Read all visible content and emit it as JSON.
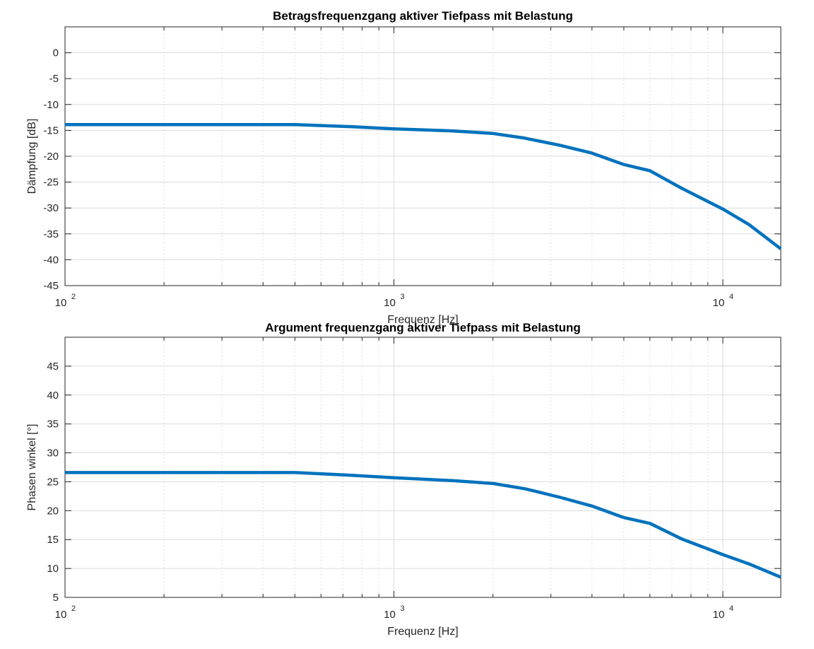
{
  "chart_data": [
    {
      "type": "line",
      "title": "Betragsfrequenzgang aktiver Tiefpass mit Belastung",
      "xlabel": "Frequenz [Hz]",
      "ylabel": "Dämpfung [dB]",
      "xscale": "log",
      "xlim": [
        100,
        15000
      ],
      "ylim": [
        -45,
        5
      ],
      "yticks": [
        0,
        -5,
        -10,
        -15,
        -20,
        -25,
        -30,
        -35,
        -40,
        -45
      ],
      "xtick_labels": [
        {
          "base": "10",
          "exp": "2",
          "value": 100
        },
        {
          "base": "10",
          "exp": "3",
          "value": 1000
        },
        {
          "base": "10",
          "exp": "4",
          "value": 10000
        }
      ],
      "grid": true,
      "color": "#0072BD",
      "series": [
        {
          "x": [
            100,
            500,
            750,
            1000,
            1500,
            2000,
            2500,
            3200,
            4000,
            5000,
            6000,
            7500,
            10000,
            12000,
            15000
          ],
          "values": [
            -13.9,
            -13.9,
            -14.3,
            -14.7,
            -15.1,
            -15.6,
            -16.5,
            -17.9,
            -19.4,
            -21.6,
            -22.8,
            -26.2,
            -30.2,
            -33.2,
            -37.9
          ]
        }
      ]
    },
    {
      "type": "line",
      "title": "Argument frequenzgang aktiver Tiefpass mit Belastung",
      "xlabel": "Frequenz [Hz]",
      "ylabel": "Phasen winkel [°]",
      "xscale": "log",
      "xlim": [
        100,
        15000
      ],
      "ylim": [
        5,
        50
      ],
      "yticks": [
        5,
        10,
        15,
        20,
        25,
        30,
        35,
        40,
        45
      ],
      "xtick_labels": [
        {
          "base": "10",
          "exp": "2",
          "value": 100
        },
        {
          "base": "10",
          "exp": "3",
          "value": 1000
        },
        {
          "base": "10",
          "exp": "4",
          "value": 10000
        }
      ],
      "grid": true,
      "color": "#0072BD",
      "series": [
        {
          "x": [
            100,
            500,
            750,
            1000,
            1500,
            2000,
            2500,
            3200,
            4000,
            5000,
            6000,
            7500,
            10000,
            12000,
            15000
          ],
          "values": [
            26.6,
            26.6,
            26.1,
            25.7,
            25.2,
            24.7,
            23.8,
            22.3,
            20.8,
            18.8,
            17.8,
            15.1,
            12.4,
            10.8,
            8.5
          ]
        }
      ]
    }
  ]
}
